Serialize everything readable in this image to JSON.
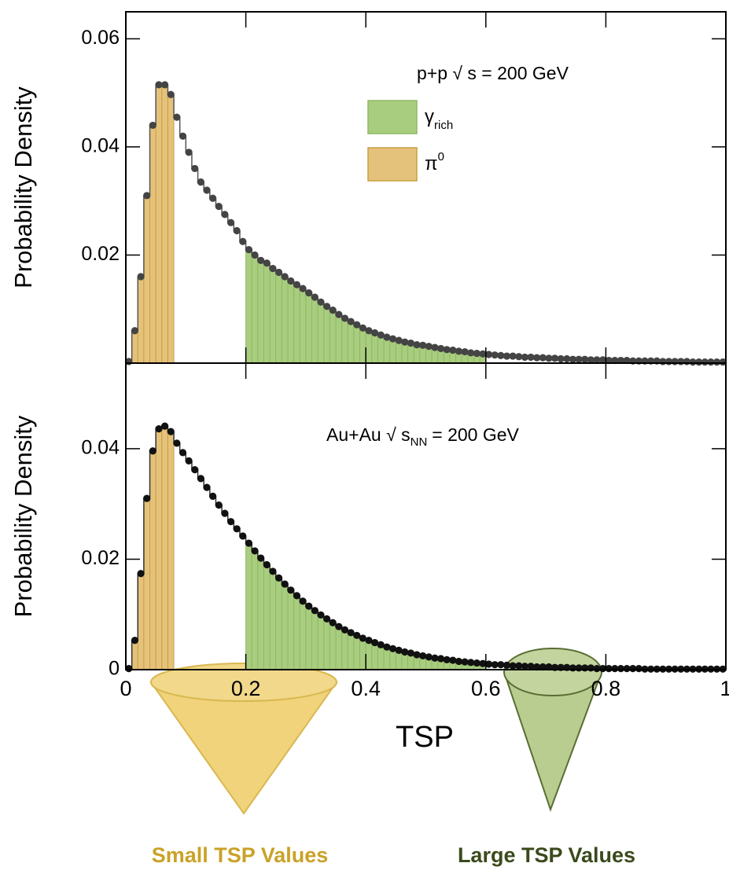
{
  "chart_data": [
    {
      "type": "histogram",
      "ylabel": "Probability Density",
      "annotation": {
        "text": "p+p √ s = 200 GeV"
      },
      "xlim": [
        0,
        1
      ],
      "xticks": [
        0,
        0.2,
        0.4,
        0.6,
        0.8,
        1
      ],
      "ylim": [
        0,
        0.065
      ],
      "yticks": [
        0.02,
        0.04,
        0.06
      ],
      "line_color": "#555555",
      "marker_color": "#444444",
      "regions": [
        {
          "color": "#a9cd7f",
          "edge": "#8fb866",
          "range": [
            0.2,
            0.6
          ]
        },
        {
          "color": "#e5c27c",
          "edge": "#c9a040",
          "range": [
            0.01,
            0.08
          ]
        }
      ],
      "legend": [
        {
          "name": "γ",
          "sub": "rich"
        },
        {
          "name": "π",
          "sup": "0"
        }
      ],
      "bins": [
        0,
        0.01,
        0.02,
        0.03,
        0.04,
        0.05,
        0.06,
        0.07,
        0.08,
        0.09,
        0.1,
        0.11,
        0.12,
        0.13,
        0.14,
        0.15,
        0.16,
        0.17,
        0.18,
        0.19,
        0.2,
        0.21,
        0.22,
        0.23,
        0.24,
        0.25,
        0.26,
        0.27,
        0.28,
        0.29,
        0.3,
        0.31,
        0.32,
        0.33,
        0.34,
        0.35,
        0.36,
        0.37,
        0.38,
        0.39,
        0.4,
        0.41,
        0.42,
        0.43,
        0.44,
        0.45,
        0.46,
        0.47,
        0.48,
        0.49,
        0.5,
        0.51,
        0.52,
        0.53,
        0.54,
        0.55,
        0.56,
        0.57,
        0.58,
        0.59,
        0.6,
        0.61,
        0.62,
        0.63,
        0.64,
        0.65,
        0.66,
        0.67,
        0.68,
        0.69,
        0.7,
        0.71,
        0.72,
        0.73,
        0.74,
        0.75,
        0.76,
        0.77,
        0.78,
        0.79,
        0.8,
        0.81,
        0.82,
        0.83,
        0.84,
        0.85,
        0.86,
        0.87,
        0.88,
        0.89,
        0.9,
        0.91,
        0.92,
        0.93,
        0.94,
        0.95,
        0.96,
        0.97,
        0.98,
        0.99,
        1
      ],
      "values": [
        0.0003,
        0.006,
        0.016,
        0.031,
        0.044,
        0.0515,
        0.0515,
        0.0497,
        0.0455,
        0.042,
        0.039,
        0.036,
        0.0335,
        0.032,
        0.0305,
        0.029,
        0.0275,
        0.026,
        0.0245,
        0.0225,
        0.021,
        0.02,
        0.019,
        0.0185,
        0.0175,
        0.0168,
        0.016,
        0.0152,
        0.0145,
        0.0138,
        0.013,
        0.0122,
        0.0113,
        0.0105,
        0.0098,
        0.009,
        0.0083,
        0.0077,
        0.0071,
        0.0065,
        0.006,
        0.0056,
        0.0052,
        0.0048,
        0.0045,
        0.0042,
        0.0039,
        0.0037,
        0.0034,
        0.0033,
        0.0031,
        0.0029,
        0.0027,
        0.0025,
        0.0024,
        0.0022,
        0.0021,
        0.0019,
        0.0018,
        0.0017,
        0.0016,
        0.0015,
        0.0014,
        0.0013,
        0.0013,
        0.0012,
        0.0011,
        0.0011,
        0.001,
        0.001,
        0.0009,
        0.0009,
        0.0008,
        0.0008,
        0.0007,
        0.0007,
        0.0007,
        0.0006,
        0.0006,
        0.0006,
        0.0005,
        0.0005,
        0.0005,
        0.0005,
        0.0004,
        0.0004,
        0.0004,
        0.0004,
        0.0004,
        0.0003,
        0.0003,
        0.0003,
        0.0003,
        0.0003,
        0.0002,
        0.0002,
        0.0002,
        0.0002,
        0.0002,
        0.0002
      ]
    },
    {
      "type": "histogram",
      "ylabel": "Probability Density",
      "xlabel": "TSP",
      "annotation": {
        "text": "Au+Au √ s",
        "sub": "NN",
        "tail": "= 200 GeV"
      },
      "xlim": [
        0,
        1
      ],
      "xticks": [
        0,
        0.2,
        0.4,
        0.6,
        0.8,
        1
      ],
      "ylim": [
        0,
        0.0555
      ],
      "yticks": [
        0,
        0.02,
        0.04
      ],
      "line_color": "#333333",
      "marker_color": "#111111",
      "regions": [
        {
          "color": "#a9cd7f",
          "edge": "#8fb866",
          "range": [
            0.2,
            0.6
          ]
        },
        {
          "color": "#e5c27c",
          "edge": "#c9a040",
          "range": [
            0.01,
            0.08
          ]
        }
      ],
      "bins": [
        0,
        0.01,
        0.02,
        0.03,
        0.04,
        0.05,
        0.06,
        0.07,
        0.08,
        0.09,
        0.1,
        0.11,
        0.12,
        0.13,
        0.14,
        0.15,
        0.16,
        0.17,
        0.18,
        0.19,
        0.2,
        0.21,
        0.22,
        0.23,
        0.24,
        0.25,
        0.26,
        0.27,
        0.28,
        0.29,
        0.3,
        0.31,
        0.32,
        0.33,
        0.34,
        0.35,
        0.36,
        0.37,
        0.38,
        0.39,
        0.4,
        0.41,
        0.42,
        0.43,
        0.44,
        0.45,
        0.46,
        0.47,
        0.48,
        0.49,
        0.5,
        0.51,
        0.52,
        0.53,
        0.54,
        0.55,
        0.56,
        0.57,
        0.58,
        0.59,
        0.6,
        0.61,
        0.62,
        0.63,
        0.64,
        0.65,
        0.66,
        0.67,
        0.68,
        0.69,
        0.7,
        0.71,
        0.72,
        0.73,
        0.74,
        0.75,
        0.76,
        0.77,
        0.78,
        0.79,
        0.8,
        0.81,
        0.82,
        0.83,
        0.84,
        0.85,
        0.86,
        0.87,
        0.88,
        0.89,
        0.9,
        0.91,
        0.92,
        0.93,
        0.94,
        0.95,
        0.96,
        0.97,
        0.98,
        0.99,
        1
      ],
      "values": [
        0.0002,
        0.0053,
        0.0174,
        0.031,
        0.0396,
        0.0436,
        0.0441,
        0.0431,
        0.041,
        0.0393,
        0.0378,
        0.0362,
        0.0346,
        0.033,
        0.0314,
        0.0298,
        0.0283,
        0.0268,
        0.0255,
        0.0242,
        0.0229,
        0.0215,
        0.0202,
        0.019,
        0.0178,
        0.0166,
        0.0155,
        0.0144,
        0.0134,
        0.0124,
        0.0115,
        0.0107,
        0.0099,
        0.0092,
        0.0085,
        0.0078,
        0.0072,
        0.0067,
        0.0062,
        0.0057,
        0.0053,
        0.0049,
        0.0045,
        0.0041,
        0.0038,
        0.0035,
        0.0032,
        0.003,
        0.0027,
        0.0025,
        0.0023,
        0.0021,
        0.002,
        0.0018,
        0.0017,
        0.0015,
        0.0014,
        0.0013,
        0.0012,
        0.0011,
        0.001,
        0.0009,
        0.0009,
        0.0008,
        0.0007,
        0.0007,
        0.0006,
        0.0006,
        0.0005,
        0.0005,
        0.0005,
        0.0004,
        0.0004,
        0.0004,
        0.0003,
        0.0003,
        0.0003,
        0.0003,
        0.0002,
        0.0002,
        0.0002,
        0.0002,
        0.0002,
        0.0002,
        0.0002,
        0.0002,
        0.0001,
        0.0001,
        0.0001,
        0.0001,
        0.0001,
        0.0001,
        0.0001,
        0.0001,
        0.0001,
        0.0001,
        0.0001,
        0.0001,
        0.0001,
        0.0001
      ]
    }
  ],
  "captions": {
    "small": "Small TSP Values",
    "large": "Large TSP Values"
  }
}
